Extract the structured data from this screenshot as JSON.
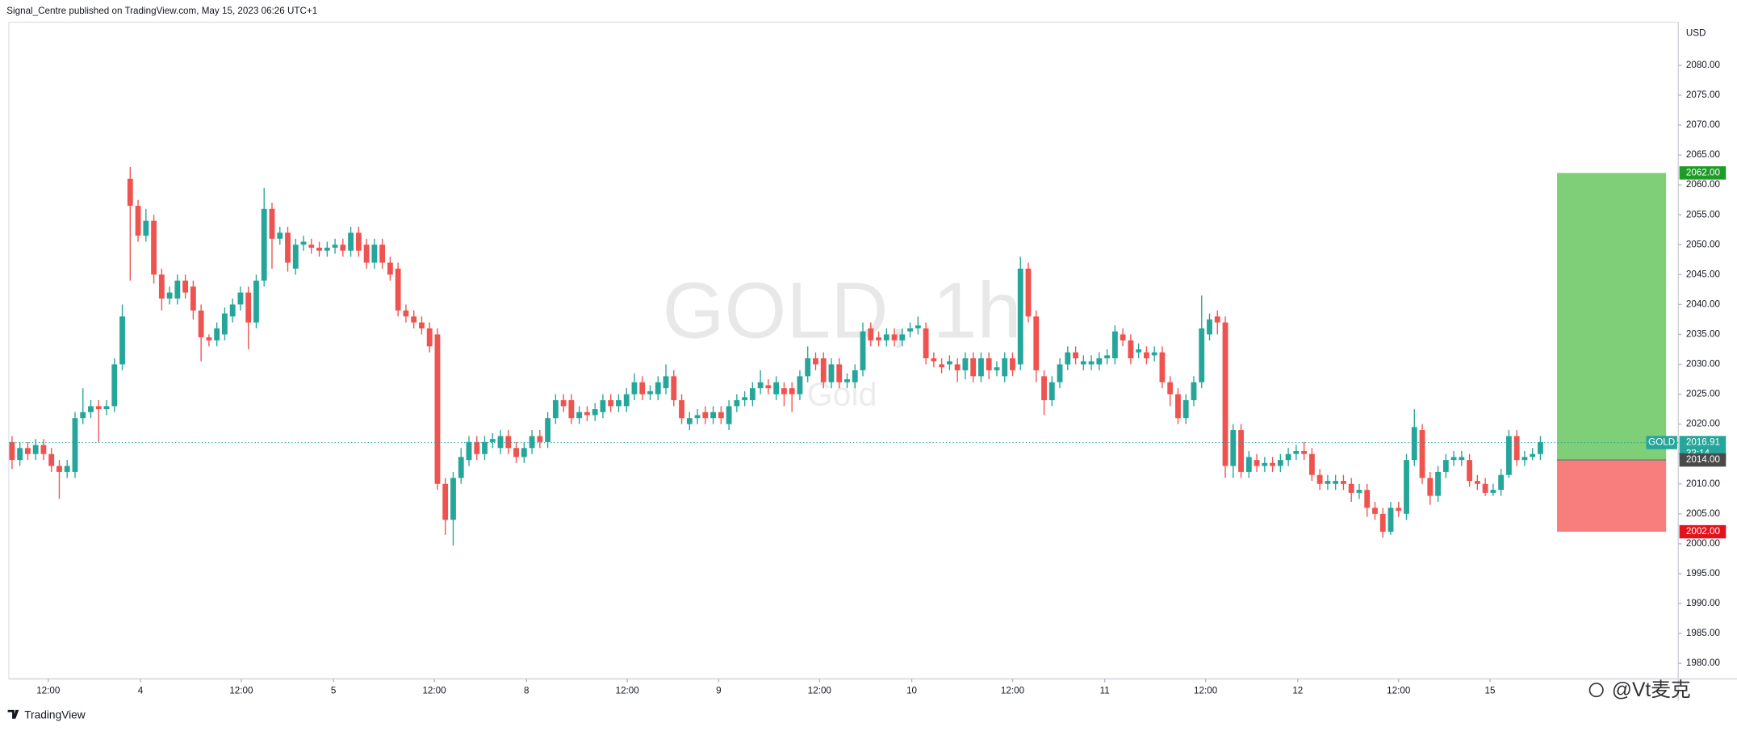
{
  "chart_data": {
    "type": "candlestick",
    "attribution": "Signal_Centre published on TradingView.com, May 15, 2023 06:26 UTC+1",
    "watermark": "GOLD, 1h",
    "watermark_subtitle": "Gold",
    "currency": "USD",
    "branding": "TradingView",
    "overlay_watermark": "@Vt麦克",
    "up_color": "#26a69a",
    "down_color": "#ef5350",
    "grid": false,
    "ylim": [
      1977.4,
      2087.2
    ],
    "yticks": [
      {
        "value": 1980,
        "label": "1980.00"
      },
      {
        "value": 1985,
        "label": "1985.00"
      },
      {
        "value": 1990,
        "label": "1990.00"
      },
      {
        "value": 1995,
        "label": "1995.00"
      },
      {
        "value": 2000,
        "label": "2000.00"
      },
      {
        "value": 2005,
        "label": "2005.00"
      },
      {
        "value": 2010,
        "label": "2010.00"
      },
      {
        "value": 2015,
        "label": "2015.00"
      },
      {
        "value": 2020,
        "label": "2020.00"
      },
      {
        "value": 2025,
        "label": "2025.00"
      },
      {
        "value": 2030,
        "label": "2030.00"
      },
      {
        "value": 2035,
        "label": "2035.00"
      },
      {
        "value": 2040,
        "label": "2040.00"
      },
      {
        "value": 2045,
        "label": "2045.00"
      },
      {
        "value": 2050,
        "label": "2050.00"
      },
      {
        "value": 2055,
        "label": "2055.00"
      },
      {
        "value": 2060,
        "label": "2060.00"
      },
      {
        "value": 2065,
        "label": "2065.00"
      },
      {
        "value": 2070,
        "label": "2070.00"
      },
      {
        "value": 2075,
        "label": "2075.00"
      },
      {
        "value": 2080,
        "label": "2080.00"
      }
    ],
    "xlim": [
      -0.4,
      211.5
    ],
    "xticks": [
      {
        "value": 4.6,
        "label": "12:00"
      },
      {
        "value": 16.3,
        "label": "4"
      },
      {
        "value": 29.1,
        "label": "12:00"
      },
      {
        "value": 40.8,
        "label": "5"
      },
      {
        "value": 53.6,
        "label": "12:00"
      },
      {
        "value": 65.3,
        "label": "8"
      },
      {
        "value": 78.1,
        "label": "12:00"
      },
      {
        "value": 89.7,
        "label": "9"
      },
      {
        "value": 102.5,
        "label": "12:00"
      },
      {
        "value": 114.2,
        "label": "10"
      },
      {
        "value": 127,
        "label": "12:00"
      },
      {
        "value": 138.7,
        "label": "11"
      },
      {
        "value": 151.5,
        "label": "12:00"
      },
      {
        "value": 163.2,
        "label": "12"
      },
      {
        "value": 176,
        "label": "12:00"
      },
      {
        "value": 187.6,
        "label": "15"
      }
    ],
    "open": [
      2017,
      2014,
      2016,
      2015,
      2016.5,
      2015,
      2013,
      2012,
      2012,
      2021,
      2022,
      2023,
      2022.5,
      2023,
      2030,
      2061,
      2056.5,
      2051.5,
      2054,
      2045,
      2041,
      2041,
      2044,
      2043,
      2039,
      2034.5,
      2034,
      2035,
      2038,
      2040,
      2042,
      2037,
      2044,
      2056,
      2051,
      2052,
      2046,
      2050,
      2050,
      2049.5,
      2049,
      2049.5,
      2050,
      2049,
      2052,
      2050,
      2047,
      2050,
      2047,
      2046,
      2039,
      2038,
      2037,
      2036,
      2035,
      2010,
      2004,
      2011,
      2014,
      2017,
      2015,
      2017,
      2016,
      2018,
      2016,
      2014.5,
      2016,
      2018,
      2017,
      2021,
      2024,
      2024,
      2021,
      2022,
      2021.5,
      2022,
      2024,
      2023,
      2023,
      2025,
      2027,
      2025,
      2025,
      2026,
      2028,
      2024,
      2020,
      2021,
      2022,
      2021,
      2022,
      2020,
      2023,
      2024,
      2024,
      2026,
      2026.5,
      2025,
      2026,
      2026,
      2025,
      2028,
      2031,
      2031,
      2027,
      2030,
      2027,
      2027,
      2029,
      2036,
      2034.5,
      2034,
      2035,
      2034,
      2035.5,
      2036,
      2036,
      2031,
      2030,
      2030,
      2030,
      2029,
      2031,
      2028,
      2031,
      2029,
      2028,
      2031,
      2030,
      2046,
      2038,
      2028,
      2024,
      2027,
      2030,
      2032,
      2030,
      2030,
      2030,
      2031,
      2031,
      2035,
      2034,
      2032,
      2032,
      2031.5,
      2032,
      2027,
      2025,
      2021,
      2024,
      2027,
      2035,
      2038,
      2037,
      2013,
      2019,
      2012,
      2014,
      2013,
      2013.5,
      2013,
      2014,
      2015,
      2015.5,
      2015,
      2011.5,
      2010,
      2010,
      2010.5,
      2010,
      2008.5,
      2009,
      2006,
      2005,
      2002,
      2006,
      2005,
      2014,
      2019,
      2011,
      2008,
      2012,
      2014,
      2014,
      2014,
      2010.5,
      2010,
      2008.5,
      2009,
      2011.5,
      2018,
      2014,
      2014.5,
      2015
    ],
    "high": [
      2018,
      2017,
      2017,
      2017.5,
      2017.5,
      2016,
      2014,
      2014,
      2022,
      2026,
      2024,
      2024,
      2024,
      2031,
      2040,
      2063,
      2057.5,
      2056,
      2055,
      2046,
      2043,
      2045,
      2045,
      2044,
      2040,
      2035,
      2037,
      2039.5,
      2041,
      2043,
      2043,
      2045,
      2059.5,
      2057,
      2053,
      2053,
      2051,
      2051.5,
      2051,
      2050.5,
      2050.5,
      2051,
      2051,
      2053,
      2053,
      2051,
      2051,
      2051,
      2048,
      2047,
      2040,
      2039,
      2038,
      2037,
      2036,
      2011,
      2012,
      2016,
      2018,
      2018,
      2018,
      2018.5,
      2019,
      2019,
      2017,
      2017,
      2019,
      2019,
      2022,
      2025,
      2025,
      2025,
      2023,
      2023,
      2023.5,
      2025,
      2025,
      2025,
      2026,
      2028.5,
      2028,
      2026.5,
      2028,
      2030,
      2029,
      2025,
      2022,
      2022.5,
      2023,
      2023,
      2023,
      2024,
      2025,
      2025.5,
      2027,
      2029,
      2027.5,
      2028,
      2027,
      2027,
      2029,
      2033,
      2032,
      2032,
      2031,
      2031,
      2028.5,
      2030,
      2037,
      2037,
      2035.5,
      2036,
      2036,
      2036,
      2037,
      2038,
      2037,
      2032,
      2031,
      2031.5,
      2031,
      2032,
      2032,
      2032,
      2032,
      2030.5,
      2032,
      2032,
      2048,
      2047,
      2039,
      2029,
      2028,
      2031,
      2033,
      2033,
      2031.5,
      2031.5,
      2032,
      2032.5,
      2036.5,
      2036,
      2035,
      2033.5,
      2033,
      2033,
      2033,
      2028,
      2026,
      2025,
      2028,
      2041.5,
      2038.5,
      2039,
      2038,
      2020,
      2020,
      2015.5,
      2015,
      2014.5,
      2014.5,
      2015,
      2016,
      2016.5,
      2017,
      2016,
      2012.5,
      2011.5,
      2011.5,
      2011.5,
      2011,
      2010,
      2010,
      2007,
      2006,
      2007,
      2007,
      2015,
      2022.5,
      2020,
      2012,
      2013,
      2015,
      2015.5,
      2015.5,
      2015,
      2011.5,
      2011,
      2010,
      2012.5,
      2019,
      2019,
      2015.5,
      2016,
      2018
    ],
    "low": [
      2012.5,
      2013,
      2014,
      2014,
      2014,
      2012,
      2007.5,
      2011,
      2011,
      2020,
      2021,
      2017,
      2021.5,
      2022,
      2029,
      2044,
      2050.5,
      2050.5,
      2043.5,
      2039,
      2040,
      2040,
      2041,
      2037.5,
      2030.5,
      2033,
      2033,
      2034,
      2037,
      2039,
      2032.5,
      2036,
      2043,
      2046,
      2050,
      2045.5,
      2045,
      2049,
      2048.5,
      2048,
      2048,
      2048.5,
      2048,
      2048,
      2048,
      2046,
      2046,
      2046,
      2044,
      2038,
      2037,
      2036,
      2035,
      2032,
      2009,
      2001.5,
      1999.7,
      2010,
      2013,
      2014,
      2014,
      2016,
      2015,
      2015,
      2013.5,
      2013.5,
      2015,
      2016,
      2016,
      2020,
      2022,
      2020,
      2020,
      2020.5,
      2020.5,
      2021,
      2022,
      2022,
      2022,
      2024,
      2024,
      2024,
      2024,
      2025,
      2023,
      2020,
      2019,
      2020,
      2020,
      2020,
      2020,
      2019,
      2022,
      2023,
      2023,
      2025,
      2025,
      2024,
      2023,
      2022,
      2024,
      2027,
      2029,
      2026,
      2026,
      2026,
      2026,
      2026,
      2028,
      2033,
      2033,
      2033,
      2033,
      2033,
      2034.5,
      2035,
      2030,
      2029.5,
      2028.5,
      2029,
      2027,
      2027.5,
      2027,
      2027,
      2027.5,
      2028,
      2027,
      2028,
      2029,
      2037,
      2027,
      2021.5,
      2023,
      2026,
      2029,
      2030,
      2029,
      2029,
      2029,
      2030,
      2030,
      2033,
      2030,
      2031,
      2030,
      2030.5,
      2026,
      2023,
      2020,
      2020,
      2023,
      2026,
      2034,
      2035,
      2011,
      2011,
      2011,
      2011,
      2012,
      2012,
      2012,
      2012,
      2013,
      2014,
      2014,
      2010.5,
      2009,
      2009,
      2009,
      2009,
      2007,
      2007.5,
      2004.5,
      2004,
      2001,
      2001.5,
      2004.5,
      2004,
      2013,
      2010,
      2006.5,
      2007,
      2011,
      2013,
      2013,
      2009.5,
      2009,
      2008,
      2008,
      2008,
      2011,
      2013,
      2013,
      2014,
      2014
    ],
    "close": [
      2014,
      2016,
      2015,
      2016.5,
      2015,
      2013,
      2012,
      2013,
      2021,
      2022,
      2023,
      2022.5,
      2023,
      2030,
      2038,
      2056.5,
      2051.5,
      2054,
      2045,
      2041,
      2042,
      2044,
      2042,
      2039,
      2034.5,
      2034,
      2036,
      2038.5,
      2040,
      2042,
      2037,
      2044,
      2056,
      2051,
      2052,
      2047,
      2050,
      2050.5,
      2049.5,
      2049,
      2049.5,
      2050,
      2049,
      2052,
      2049,
      2047,
      2050,
      2047,
      2045,
      2039,
      2038,
      2037,
      2036,
      2033,
      2010,
      2004,
      2011,
      2014.5,
      2017,
      2015,
      2017,
      2017.5,
      2018,
      2016,
      2014.5,
      2016,
      2018,
      2017,
      2021,
      2024,
      2023,
      2021,
      2022,
      2021.5,
      2022.5,
      2024,
      2023,
      2024,
      2025,
      2027,
      2025,
      2025.5,
      2027,
      2028,
      2024,
      2021,
      2021,
      2021.5,
      2021,
      2022,
      2021,
      2023,
      2024,
      2024.5,
      2026,
      2027,
      2026,
      2027,
      2025,
      2025,
      2028,
      2031,
      2030,
      2027,
      2030,
      2027,
      2027.5,
      2029,
      2035.5,
      2034,
      2034,
      2035,
      2034,
      2035,
      2036,
      2036.5,
      2031,
      2030.5,
      2029.5,
      2030.5,
      2029,
      2031,
      2028,
      2031,
      2029,
      2029.5,
      2031,
      2029,
      2046,
      2038,
      2029,
      2024,
      2027,
      2030,
      2032,
      2031,
      2030.5,
      2030.5,
      2031,
      2031.5,
      2035.5,
      2034,
      2031,
      2032.5,
      2031,
      2032,
      2027,
      2025,
      2021,
      2024,
      2027,
      2036,
      2037.5,
      2037,
      2013,
      2019,
      2012,
      2014.5,
      2013,
      2013.5,
      2013,
      2014,
      2015,
      2015.5,
      2015,
      2011.5,
      2010,
      2010.5,
      2010.5,
      2010,
      2008.5,
      2009,
      2006,
      2005,
      2002,
      2006,
      2005.5,
      2014,
      2019.5,
      2011,
      2008,
      2012,
      2014,
      2014.5,
      2014.5,
      2010.5,
      2010,
      2008.5,
      2009,
      2011.5,
      2018,
      2014,
      2014.5,
      2015,
      2017
    ],
    "last_price": {
      "symbol": "GOLD",
      "value": 2016.91,
      "countdown": "33:14",
      "color": "#26a69a"
    },
    "position": {
      "target": {
        "value": 2062,
        "label": "2062.00"
      },
      "entry": {
        "value": 2014,
        "label": "2014.00"
      },
      "stop": {
        "value": 2002,
        "label": "2002.00"
      },
      "profit_color": "#7fce78",
      "loss_color": "#f87e7e",
      "target_color": "#1f9c27",
      "entry_color": "#4a4a4a",
      "stop_color": "#e3121b"
    }
  }
}
